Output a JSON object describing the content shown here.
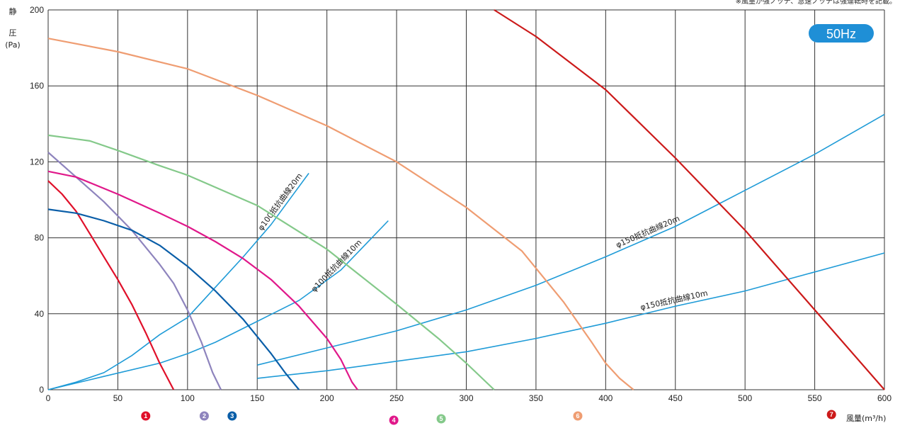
{
  "chart_data": {
    "type": "line",
    "note": "※風量が強ノッチ、急速ノッチは強運転時を記載。",
    "badge": "50Hz",
    "ylabel_chars": [
      "静",
      "圧"
    ],
    "yunit": "(Pa)",
    "xlabel": "風量(m³/h)",
    "xlim": [
      0,
      600
    ],
    "ylim": [
      0,
      200
    ],
    "x_ticks": [
      0,
      50,
      100,
      150,
      200,
      250,
      300,
      350,
      400,
      450,
      500,
      550,
      600
    ],
    "y_ticks": [
      0,
      40,
      80,
      120,
      160,
      200
    ],
    "grid": true,
    "series": [
      {
        "name": "1",
        "color": "#e0102a",
        "marker_x": 70,
        "points": [
          [
            0,
            110
          ],
          [
            10,
            103
          ],
          [
            20,
            94
          ],
          [
            30,
            82
          ],
          [
            40,
            70
          ],
          [
            50,
            58
          ],
          [
            60,
            45
          ],
          [
            70,
            30
          ],
          [
            80,
            14
          ],
          [
            90,
            0
          ]
        ]
      },
      {
        "name": "2",
        "color": "#8e84bd",
        "marker_x": 112,
        "points": [
          [
            0,
            125
          ],
          [
            20,
            112
          ],
          [
            40,
            99
          ],
          [
            60,
            84
          ],
          [
            80,
            66
          ],
          [
            90,
            56
          ],
          [
            100,
            42
          ],
          [
            110,
            25
          ],
          [
            118,
            9
          ],
          [
            124,
            0
          ]
        ]
      },
      {
        "name": "3",
        "color": "#0a5ea8",
        "marker_x": 132,
        "points": [
          [
            0,
            95
          ],
          [
            20,
            93
          ],
          [
            40,
            89
          ],
          [
            60,
            84
          ],
          [
            80,
            76
          ],
          [
            100,
            65
          ],
          [
            120,
            52
          ],
          [
            140,
            37
          ],
          [
            160,
            19
          ],
          [
            170,
            9
          ],
          [
            180,
            0
          ]
        ]
      },
      {
        "name": "4",
        "color": "#e0188a",
        "marker_x": 248,
        "points": [
          [
            0,
            115
          ],
          [
            20,
            112
          ],
          [
            50,
            103
          ],
          [
            80,
            93
          ],
          [
            100,
            86
          ],
          [
            120,
            78
          ],
          [
            140,
            69
          ],
          [
            160,
            58
          ],
          [
            180,
            44
          ],
          [
            200,
            27
          ],
          [
            210,
            16
          ],
          [
            218,
            4
          ],
          [
            222,
            0
          ]
        ]
      },
      {
        "name": "5",
        "color": "#84c98a",
        "marker_x": 282,
        "points": [
          [
            0,
            134
          ],
          [
            20,
            132
          ],
          [
            30,
            131
          ],
          [
            50,
            126
          ],
          [
            80,
            118
          ],
          [
            100,
            113
          ],
          [
            150,
            97
          ],
          [
            200,
            74
          ],
          [
            250,
            45
          ],
          [
            280,
            27
          ],
          [
            300,
            14
          ],
          [
            320,
            0
          ]
        ]
      },
      {
        "name": "6",
        "color": "#ef9d72",
        "marker_x": 380,
        "points": [
          [
            0,
            185
          ],
          [
            50,
            178
          ],
          [
            100,
            169
          ],
          [
            150,
            155
          ],
          [
            200,
            139
          ],
          [
            250,
            120
          ],
          [
            300,
            96
          ],
          [
            340,
            73
          ],
          [
            370,
            46
          ],
          [
            390,
            25
          ],
          [
            400,
            14
          ],
          [
            410,
            6
          ],
          [
            420,
            0
          ]
        ]
      },
      {
        "name": "7",
        "color": "#cc1a1a",
        "marker_x": 562,
        "points": [
          [
            320,
            200
          ],
          [
            350,
            186
          ],
          [
            400,
            158
          ],
          [
            450,
            122
          ],
          [
            500,
            84
          ],
          [
            550,
            42
          ],
          [
            600,
            0
          ]
        ]
      }
    ],
    "resistance_curves": [
      {
        "name": "φ100抵抗曲線20m",
        "color": "#1f9bd7",
        "points": [
          [
            0,
            0
          ],
          [
            20,
            4
          ],
          [
            40,
            9
          ],
          [
            60,
            18
          ],
          [
            80,
            29
          ],
          [
            100,
            38
          ],
          [
            120,
            54
          ],
          [
            140,
            70
          ],
          [
            160,
            87
          ],
          [
            187,
            114
          ]
        ]
      },
      {
        "name": "φ100抵抗曲線10m",
        "color": "#1f9bd7",
        "points": [
          [
            0,
            0
          ],
          [
            40,
            7
          ],
          [
            80,
            14
          ],
          [
            100,
            19
          ],
          [
            120,
            25
          ],
          [
            150,
            36
          ],
          [
            180,
            47
          ],
          [
            210,
            63
          ],
          [
            244,
            89
          ]
        ]
      },
      {
        "name": "φ150抵抗曲線20m",
        "color": "#1f9bd7",
        "points": [
          [
            150,
            13
          ],
          [
            200,
            22
          ],
          [
            250,
            31
          ],
          [
            300,
            42
          ],
          [
            350,
            55
          ],
          [
            400,
            70
          ],
          [
            450,
            86
          ],
          [
            500,
            105
          ],
          [
            550,
            124
          ],
          [
            600,
            145
          ]
        ]
      },
      {
        "name": "φ150抵抗曲線10m",
        "color": "#1f9bd7",
        "points": [
          [
            150,
            6
          ],
          [
            200,
            10
          ],
          [
            250,
            15
          ],
          [
            300,
            20
          ],
          [
            350,
            27
          ],
          [
            400,
            35
          ],
          [
            450,
            44
          ],
          [
            500,
            52
          ],
          [
            550,
            62
          ],
          [
            600,
            72
          ]
        ]
      }
    ]
  }
}
